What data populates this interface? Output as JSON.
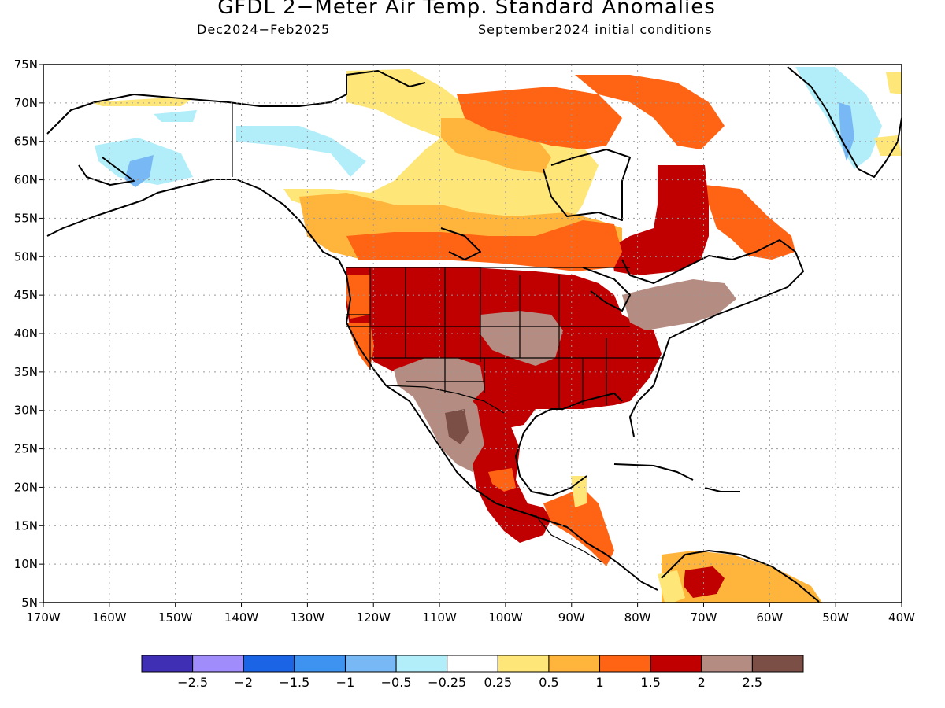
{
  "header": {
    "title": "GFDL 2−Meter Air Temp. Standard Anomalies",
    "period": "Dec2024−Feb2025",
    "init": "September2024 initial conditions"
  },
  "map": {
    "lon_range": [
      -170,
      -40
    ],
    "lat_range": [
      5,
      75
    ],
    "grid": true,
    "lat_ticks": [
      "5N",
      "10N",
      "15N",
      "20N",
      "25N",
      "30N",
      "35N",
      "40N",
      "45N",
      "50N",
      "55N",
      "60N",
      "65N",
      "70N",
      "75N"
    ],
    "lon_ticks": [
      "170W",
      "160W",
      "150W",
      "140W",
      "130W",
      "120W",
      "110W",
      "100W",
      "90W",
      "80W",
      "70W",
      "60W",
      "50W",
      "40W"
    ]
  },
  "colorbar": {
    "colors": [
      "#3f2fb4",
      "#a08cfa",
      "#1c64e6",
      "#3e92f0",
      "#78b8f4",
      "#b2eefa",
      "#ffffff",
      "#ffe678",
      "#ffb43c",
      "#ff6414",
      "#c00000",
      "#b48c82",
      "#7b4f46"
    ],
    "labels": [
      "−2.5",
      "−2",
      "−1.5",
      "−1",
      "−0.5",
      "−0.25",
      "0.25",
      "0.5",
      "1",
      "1.5",
      "2",
      "2.5"
    ]
  }
}
